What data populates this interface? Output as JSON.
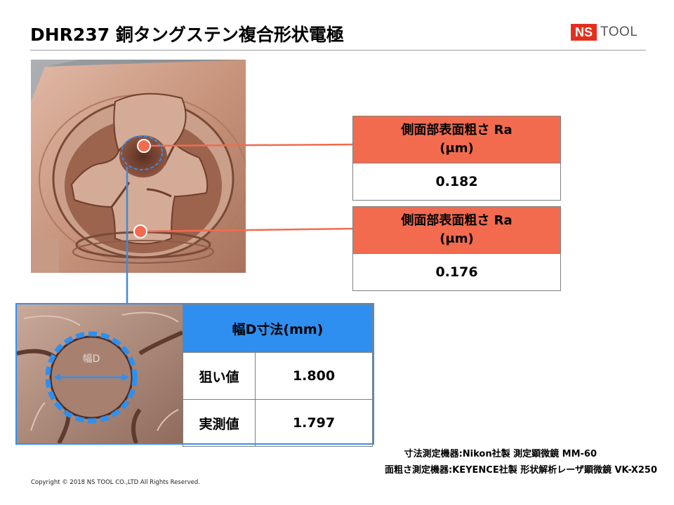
{
  "title": "DHR237 銅タングステン複合形状電極",
  "logo": {
    "ns": "NS",
    "tool": "TOOL"
  },
  "roughness_tables": [
    {
      "header_line1": "側面部表面粗さ Ra",
      "header_line2": "(μm)",
      "value": "0.182"
    },
    {
      "header_line1": "側面部表面粗さ Ra",
      "header_line2": "(μm)",
      "value": "0.176"
    }
  ],
  "width_table": {
    "header": "幅D寸法(mm)",
    "rows": [
      {
        "label": "狙い値",
        "value": "1.800"
      },
      {
        "label": "実測値",
        "value": "1.797"
      }
    ]
  },
  "detail_photo_label": "幅D",
  "notes": [
    "寸法測定機器:Nikon社製 測定顕微鏡 MM-60",
    "面粗さ測定機器:KEYENCE社製 形状解析レーザ顕微鏡 VK-X250"
  ],
  "copyright": "Copyright © 2018 NS TOOL CO.,LTD All Rights Reserved.",
  "colors": {
    "accent_red": "#f26b4f",
    "accent_blue": "#2e8ff0",
    "logo_red": "#e3301e",
    "copper": "#b88570"
  }
}
